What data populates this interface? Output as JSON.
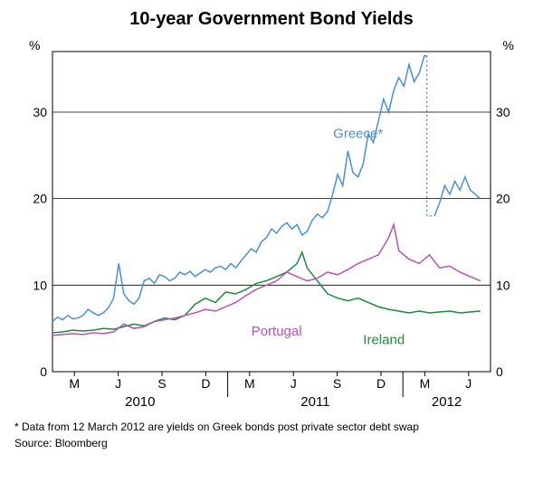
{
  "chart": {
    "type": "line",
    "title": "10-year Government Bond Yields",
    "y_unit": "%",
    "ylim": [
      0,
      37
    ],
    "yticks": [
      0,
      10,
      20,
      30
    ],
    "x_months": [
      "M",
      "J",
      "S",
      "D",
      "M",
      "J",
      "S",
      "D",
      "M",
      "J"
    ],
    "x_years": [
      "2010",
      "2011",
      "2012"
    ],
    "background_color": "#ffffff",
    "grid_color": "#000000",
    "line_width": 1.5,
    "series": {
      "greece": {
        "label": "Greece*",
        "color": "#4a8fd8",
        "label_color": "#4a8fd8",
        "data_pre": [
          [
            0,
            5.8
          ],
          [
            1,
            6.3
          ],
          [
            2,
            6.0
          ],
          [
            3,
            6.5
          ],
          [
            4,
            6.1
          ],
          [
            5,
            6.2
          ],
          [
            6,
            6.5
          ],
          [
            7,
            7.2
          ],
          [
            8,
            6.8
          ],
          [
            9,
            6.5
          ],
          [
            10,
            6.8
          ],
          [
            11,
            7.4
          ],
          [
            12,
            8.5
          ],
          [
            13,
            12.5
          ],
          [
            14,
            9.0
          ],
          [
            15,
            8.2
          ],
          [
            16,
            7.8
          ],
          [
            17,
            8.5
          ],
          [
            18,
            10.5
          ],
          [
            19,
            10.8
          ],
          [
            20,
            10.2
          ],
          [
            21,
            11.2
          ],
          [
            22,
            11.0
          ],
          [
            23,
            10.5
          ],
          [
            24,
            10.8
          ],
          [
            25,
            11.5
          ],
          [
            26,
            11.2
          ],
          [
            27,
            11.6
          ],
          [
            28,
            11.0
          ],
          [
            29,
            11.4
          ],
          [
            30,
            11.8
          ],
          [
            31,
            11.5
          ],
          [
            32,
            12.0
          ],
          [
            33,
            12.2
          ],
          [
            34,
            11.8
          ],
          [
            35,
            12.5
          ],
          [
            36,
            12.0
          ],
          [
            37,
            12.8
          ],
          [
            38,
            13.5
          ],
          [
            39,
            14.2
          ],
          [
            40,
            13.8
          ],
          [
            41,
            15.0
          ],
          [
            42,
            15.5
          ],
          [
            43,
            16.5
          ],
          [
            44,
            16.0
          ],
          [
            45,
            16.8
          ],
          [
            46,
            17.2
          ],
          [
            47,
            16.5
          ],
          [
            48,
            17.0
          ],
          [
            49,
            15.8
          ],
          [
            50,
            16.2
          ],
          [
            51,
            17.5
          ],
          [
            52,
            18.2
          ],
          [
            53,
            17.8
          ],
          [
            54,
            18.5
          ],
          [
            55,
            20.5
          ],
          [
            56,
            22.8
          ],
          [
            57,
            21.5
          ],
          [
            58,
            25.5
          ],
          [
            59,
            23.0
          ],
          [
            60,
            22.5
          ],
          [
            61,
            24.0
          ],
          [
            62,
            27.5
          ],
          [
            63,
            26.5
          ],
          [
            64,
            29.0
          ],
          [
            65,
            31.5
          ],
          [
            66,
            30.0
          ],
          [
            67,
            32.5
          ],
          [
            68,
            34.0
          ],
          [
            69,
            33.0
          ],
          [
            70,
            35.5
          ],
          [
            71,
            33.5
          ],
          [
            72,
            34.5
          ],
          [
            73,
            36.5
          ],
          [
            73.5,
            36.5
          ]
        ],
        "data_post": [
          [
            75,
            18.0
          ],
          [
            76,
            19.5
          ],
          [
            77,
            21.5
          ],
          [
            78,
            20.5
          ],
          [
            79,
            22.0
          ],
          [
            80,
            21.0
          ],
          [
            81,
            22.5
          ],
          [
            82,
            21.0
          ],
          [
            83,
            20.5
          ],
          [
            84,
            20.0
          ]
        ],
        "dotted_bridge": [
          [
            73.5,
            36.5
          ],
          [
            73.5,
            18.0
          ],
          [
            75,
            18.0
          ]
        ]
      },
      "ireland": {
        "label": "Ireland",
        "color": "#1a8c3a",
        "label_color": "#1a8c3a",
        "data": [
          [
            0,
            4.5
          ],
          [
            2,
            4.6
          ],
          [
            4,
            4.8
          ],
          [
            6,
            4.7
          ],
          [
            8,
            4.8
          ],
          [
            10,
            5.0
          ],
          [
            12,
            4.9
          ],
          [
            14,
            5.2
          ],
          [
            16,
            5.5
          ],
          [
            18,
            5.3
          ],
          [
            20,
            5.8
          ],
          [
            22,
            6.2
          ],
          [
            24,
            6.0
          ],
          [
            26,
            6.5
          ],
          [
            28,
            7.8
          ],
          [
            30,
            8.5
          ],
          [
            32,
            8.0
          ],
          [
            34,
            9.2
          ],
          [
            36,
            9.0
          ],
          [
            38,
            9.5
          ],
          [
            40,
            10.2
          ],
          [
            42,
            10.5
          ],
          [
            44,
            11.0
          ],
          [
            46,
            11.5
          ],
          [
            48,
            12.5
          ],
          [
            49,
            13.8
          ],
          [
            50,
            12.0
          ],
          [
            52,
            10.5
          ],
          [
            54,
            9.0
          ],
          [
            56,
            8.5
          ],
          [
            58,
            8.2
          ],
          [
            60,
            8.5
          ],
          [
            62,
            8.0
          ],
          [
            64,
            7.5
          ],
          [
            66,
            7.2
          ],
          [
            68,
            7.0
          ],
          [
            70,
            6.8
          ],
          [
            72,
            7.0
          ],
          [
            74,
            6.8
          ],
          [
            76,
            6.9
          ],
          [
            78,
            7.0
          ],
          [
            80,
            6.8
          ],
          [
            82,
            6.9
          ],
          [
            84,
            7.0
          ]
        ]
      },
      "portugal": {
        "label": "Portugal",
        "color": "#b850b8",
        "label_color": "#b850b8",
        "data": [
          [
            0,
            4.2
          ],
          [
            2,
            4.3
          ],
          [
            4,
            4.4
          ],
          [
            6,
            4.3
          ],
          [
            8,
            4.5
          ],
          [
            10,
            4.4
          ],
          [
            12,
            4.6
          ],
          [
            14,
            5.5
          ],
          [
            16,
            5.0
          ],
          [
            18,
            5.2
          ],
          [
            20,
            5.8
          ],
          [
            22,
            6.0
          ],
          [
            24,
            6.2
          ],
          [
            26,
            6.5
          ],
          [
            28,
            6.8
          ],
          [
            30,
            7.2
          ],
          [
            32,
            7.0
          ],
          [
            34,
            7.5
          ],
          [
            36,
            8.0
          ],
          [
            38,
            8.8
          ],
          [
            40,
            9.5
          ],
          [
            42,
            10.0
          ],
          [
            44,
            10.5
          ],
          [
            46,
            11.5
          ],
          [
            48,
            11.0
          ],
          [
            50,
            10.5
          ],
          [
            52,
            10.8
          ],
          [
            54,
            11.5
          ],
          [
            56,
            11.2
          ],
          [
            58,
            11.8
          ],
          [
            60,
            12.5
          ],
          [
            62,
            13.0
          ],
          [
            64,
            13.5
          ],
          [
            66,
            15.5
          ],
          [
            67,
            17.0
          ],
          [
            68,
            14.0
          ],
          [
            70,
            13.0
          ],
          [
            72,
            12.5
          ],
          [
            74,
            13.5
          ],
          [
            76,
            12.0
          ],
          [
            78,
            12.2
          ],
          [
            80,
            11.5
          ],
          [
            82,
            11.0
          ],
          [
            84,
            10.5
          ]
        ]
      }
    }
  },
  "footnote": "*   Data from 12 March 2012 are yields on Greek bonds post private sector debt swap",
  "source": "Source: Bloomberg"
}
